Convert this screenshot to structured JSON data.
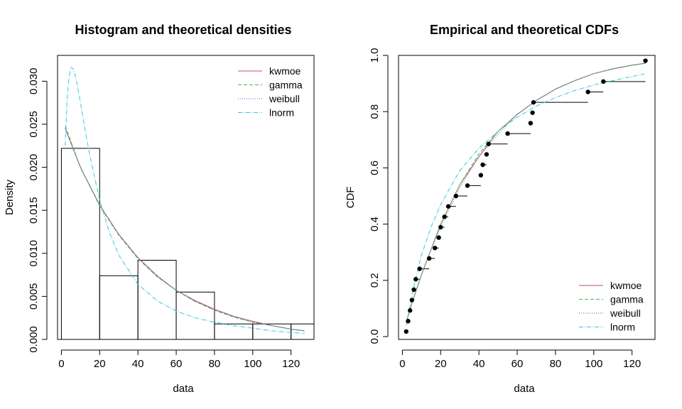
{
  "chart_data": [
    {
      "type": "bar",
      "title": "Histogram and theoretical densities",
      "xlabel": "data",
      "ylabel": "Density",
      "xlim": [
        -2,
        132
      ],
      "ylim": [
        0,
        0.033
      ],
      "xticks": [
        "0",
        "20",
        "40",
        "60",
        "80",
        "100",
        "120"
      ],
      "yticks": [
        "0.000",
        "0.005",
        "0.010",
        "0.015",
        "0.020",
        "0.025",
        "0.030"
      ],
      "bins": [
        [
          0,
          20
        ],
        [
          20,
          40
        ],
        [
          40,
          60
        ],
        [
          60,
          80
        ],
        [
          80,
          100
        ],
        [
          100,
          120
        ],
        [
          120,
          132
        ]
      ],
      "values": [
        0.0222,
        0.0074,
        0.0092,
        0.0055,
        0.0018,
        0.0018,
        0.0018
      ],
      "legend": {
        "position": "top-right",
        "entries": [
          "kwmoe",
          "gamma",
          "weibull",
          "lnorm"
        ]
      },
      "series": [
        {
          "name": "kwmoe",
          "color": "#c3525d",
          "dash": "",
          "x": [
            2,
            10,
            20,
            30,
            40,
            50,
            60,
            70,
            80,
            90,
            100,
            110,
            120,
            127
          ],
          "y": [
            0.0245,
            0.02,
            0.0156,
            0.0122,
            0.0095,
            0.0074,
            0.0057,
            0.0045,
            0.0035,
            0.0027,
            0.0021,
            0.0016,
            0.0012,
            0.001
          ]
        },
        {
          "name": "gamma",
          "color": "#4fb34f",
          "dash": "5,3",
          "x": [
            2,
            10,
            20,
            30,
            40,
            50,
            60,
            70,
            80,
            90,
            100,
            110,
            120,
            127
          ],
          "y": [
            0.0248,
            0.02,
            0.0155,
            0.0121,
            0.0094,
            0.0073,
            0.0057,
            0.0044,
            0.0034,
            0.0026,
            0.002,
            0.0016,
            0.0012,
            0.001
          ]
        },
        {
          "name": "weibull",
          "color": "#2a6fd1",
          "dash": "1,2",
          "x": [
            2,
            10,
            20,
            30,
            40,
            50,
            60,
            70,
            80,
            90,
            100,
            110,
            120,
            127
          ],
          "y": [
            0.0246,
            0.0199,
            0.0156,
            0.0122,
            0.0095,
            0.0073,
            0.0057,
            0.0044,
            0.0034,
            0.0026,
            0.002,
            0.0016,
            0.0012,
            0.001
          ]
        },
        {
          "name": "lnorm",
          "color": "#2cc8d8",
          "dash": "6,2,1,2",
          "x": [
            2,
            3,
            4,
            5,
            6,
            7,
            8,
            10,
            12,
            15,
            20,
            25,
            30,
            40,
            50,
            60,
            70,
            80,
            90,
            100,
            110,
            120,
            127
          ],
          "y": [
            0.0225,
            0.028,
            0.0305,
            0.0316,
            0.0315,
            0.0309,
            0.0299,
            0.0275,
            0.0249,
            0.0212,
            0.0162,
            0.0125,
            0.0098,
            0.0064,
            0.0045,
            0.0033,
            0.0025,
            0.002,
            0.0016,
            0.0013,
            0.001,
            0.0008,
            0.0007
          ]
        }
      ]
    },
    {
      "type": "line",
      "title": "Empirical and theoretical CDFs",
      "xlabel": "data",
      "ylabel": "CDF",
      "xlim": [
        -2,
        132
      ],
      "ylim": [
        -0.01,
        1.0
      ],
      "xticks": [
        "0",
        "20",
        "40",
        "60",
        "80",
        "100",
        "120"
      ],
      "yticks": [
        "0.0",
        "0.2",
        "0.4",
        "0.6",
        "0.8",
        "1.0"
      ],
      "legend": {
        "position": "bottom-right",
        "entries": [
          "kwmoe",
          "gamma",
          "weibull",
          "lnorm"
        ]
      },
      "empirical": {
        "x": [
          2,
          3,
          4,
          5,
          6,
          7,
          9,
          14,
          17,
          19,
          20,
          22,
          24,
          28,
          34,
          41,
          42,
          44,
          45,
          55,
          67,
          68,
          68.5,
          97,
          105,
          127
        ],
        "y": [
          0.018,
          0.055,
          0.093,
          0.13,
          0.167,
          0.204,
          0.241,
          0.278,
          0.315,
          0.352,
          0.389,
          0.426,
          0.463,
          0.5,
          0.537,
          0.574,
          0.611,
          0.648,
          0.685,
          0.722,
          0.759,
          0.796,
          0.833,
          0.87,
          0.907,
          0.981
        ]
      },
      "series": [
        {
          "name": "kwmoe",
          "color": "#c3525d",
          "dash": "",
          "x": [
            2,
            5,
            10,
            15,
            20,
            30,
            40,
            50,
            60,
            70,
            80,
            90,
            100,
            110,
            120,
            127
          ],
          "y": [
            0.05,
            0.12,
            0.22,
            0.31,
            0.4,
            0.54,
            0.64,
            0.73,
            0.79,
            0.84,
            0.88,
            0.91,
            0.935,
            0.952,
            0.965,
            0.972
          ]
        },
        {
          "name": "gamma",
          "color": "#4fb34f",
          "dash": "5,3",
          "x": [
            2,
            5,
            10,
            15,
            20,
            30,
            40,
            50,
            60,
            70,
            80,
            90,
            100,
            110,
            120,
            127
          ],
          "y": [
            0.05,
            0.12,
            0.22,
            0.31,
            0.4,
            0.54,
            0.65,
            0.73,
            0.79,
            0.84,
            0.88,
            0.91,
            0.935,
            0.952,
            0.965,
            0.972
          ]
        },
        {
          "name": "weibull",
          "color": "#2a6fd1",
          "dash": "1,2",
          "x": [
            2,
            5,
            10,
            15,
            20,
            30,
            40,
            50,
            60,
            70,
            80,
            90,
            100,
            110,
            120,
            127
          ],
          "y": [
            0.05,
            0.12,
            0.22,
            0.31,
            0.39,
            0.53,
            0.64,
            0.72,
            0.79,
            0.84,
            0.88,
            0.91,
            0.935,
            0.953,
            0.966,
            0.973
          ]
        },
        {
          "name": "lnorm",
          "color": "#2cc8d8",
          "dash": "6,2,1,2",
          "x": [
            2,
            5,
            10,
            15,
            20,
            30,
            40,
            50,
            60,
            70,
            80,
            90,
            100,
            110,
            120,
            127
          ],
          "y": [
            0.04,
            0.15,
            0.29,
            0.39,
            0.47,
            0.59,
            0.67,
            0.73,
            0.78,
            0.82,
            0.85,
            0.875,
            0.895,
            0.91,
            0.925,
            0.935
          ]
        }
      ]
    }
  ]
}
